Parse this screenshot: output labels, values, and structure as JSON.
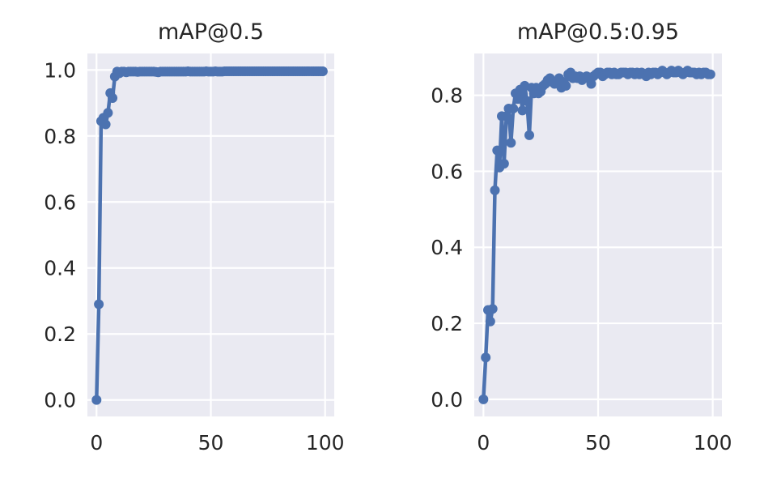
{
  "chart_data": [
    {
      "type": "line",
      "title": "mAP@0.5",
      "xlabel": "",
      "ylabel": "",
      "xlim": [
        -4,
        104
      ],
      "ylim": [
        -0.05,
        1.05
      ],
      "xticks": [
        0,
        50,
        100
      ],
      "xtick_labels": [
        "0",
        "50",
        "100"
      ],
      "yticks": [
        0.0,
        0.2,
        0.4,
        0.6,
        0.8,
        1.0
      ],
      "ytick_labels": [
        "0.0",
        "0.2",
        "0.4",
        "0.6",
        "0.8",
        "1.0"
      ],
      "grid": true,
      "markers": true,
      "color": "#4c72b0",
      "x": [
        0,
        1,
        2,
        3,
        4,
        5,
        6,
        7,
        8,
        9,
        10,
        11,
        12,
        13,
        14,
        15,
        16,
        17,
        18,
        19,
        20,
        21,
        22,
        23,
        24,
        25,
        26,
        27,
        28,
        29,
        30,
        31,
        32,
        33,
        34,
        35,
        36,
        37,
        38,
        39,
        40,
        41,
        42,
        43,
        44,
        45,
        46,
        47,
        48,
        49,
        50,
        51,
        52,
        53,
        54,
        55,
        56,
        57,
        58,
        59,
        60,
        61,
        62,
        63,
        64,
        65,
        66,
        67,
        68,
        69,
        70,
        71,
        72,
        73,
        74,
        75,
        76,
        77,
        78,
        79,
        80,
        81,
        82,
        83,
        84,
        85,
        86,
        87,
        88,
        89,
        90,
        91,
        92,
        93,
        94,
        95,
        96,
        97,
        98,
        99
      ],
      "y": [
        0.0,
        0.29,
        0.845,
        0.855,
        0.835,
        0.87,
        0.93,
        0.915,
        0.98,
        0.995,
        0.99,
        0.995,
        0.995,
        0.993,
        0.995,
        0.995,
        0.995,
        0.995,
        0.994,
        0.995,
        0.995,
        0.995,
        0.995,
        0.995,
        0.995,
        0.995,
        0.994,
        0.993,
        0.995,
        0.995,
        0.995,
        0.995,
        0.995,
        0.995,
        0.995,
        0.995,
        0.995,
        0.995,
        0.995,
        0.995,
        0.996,
        0.995,
        0.995,
        0.995,
        0.995,
        0.995,
        0.995,
        0.995,
        0.996,
        0.995,
        0.995,
        0.995,
        0.996,
        0.995,
        0.995,
        0.995,
        0.996,
        0.996,
        0.996,
        0.996,
        0.996,
        0.996,
        0.996,
        0.996,
        0.996,
        0.996,
        0.996,
        0.996,
        0.996,
        0.996,
        0.996,
        0.996,
        0.996,
        0.996,
        0.996,
        0.996,
        0.996,
        0.996,
        0.996,
        0.996,
        0.996,
        0.996,
        0.996,
        0.996,
        0.996,
        0.996,
        0.996,
        0.996,
        0.996,
        0.996,
        0.996,
        0.996,
        0.996,
        0.996,
        0.996,
        0.996,
        0.996,
        0.996,
        0.996,
        0.996
      ]
    },
    {
      "type": "line",
      "title": "mAP@0.5:0.95",
      "xlabel": "",
      "ylabel": "",
      "xlim": [
        -4,
        104
      ],
      "ylim": [
        -0.045,
        0.91
      ],
      "xticks": [
        0,
        50,
        100
      ],
      "xtick_labels": [
        "0",
        "50",
        "100"
      ],
      "yticks": [
        0.0,
        0.2,
        0.4,
        0.6,
        0.8
      ],
      "ytick_labels": [
        "0.0",
        "0.2",
        "0.4",
        "0.6",
        "0.8"
      ],
      "grid": true,
      "markers": true,
      "color": "#4c72b0",
      "x": [
        0,
        1,
        2,
        3,
        4,
        5,
        6,
        7,
        8,
        9,
        10,
        11,
        12,
        13,
        14,
        15,
        16,
        17,
        18,
        19,
        20,
        21,
        22,
        23,
        24,
        25,
        26,
        27,
        28,
        29,
        30,
        31,
        32,
        33,
        34,
        35,
        36,
        37,
        38,
        39,
        40,
        41,
        42,
        43,
        44,
        45,
        46,
        47,
        48,
        49,
        50,
        51,
        52,
        53,
        54,
        55,
        56,
        57,
        58,
        59,
        60,
        61,
        62,
        63,
        64,
        65,
        66,
        67,
        68,
        69,
        70,
        71,
        72,
        73,
        74,
        75,
        76,
        77,
        78,
        79,
        80,
        81,
        82,
        83,
        84,
        85,
        86,
        87,
        88,
        89,
        90,
        91,
        92,
        93,
        94,
        95,
        96,
        97,
        98,
        99
      ],
      "y": [
        0.0,
        0.11,
        0.235,
        0.205,
        0.238,
        0.55,
        0.655,
        0.61,
        0.745,
        0.62,
        0.745,
        0.765,
        0.675,
        0.765,
        0.805,
        0.79,
        0.815,
        0.76,
        0.825,
        0.785,
        0.695,
        0.82,
        0.805,
        0.82,
        0.805,
        0.81,
        0.825,
        0.83,
        0.84,
        0.845,
        0.835,
        0.83,
        0.835,
        0.845,
        0.82,
        0.835,
        0.825,
        0.855,
        0.86,
        0.845,
        0.85,
        0.845,
        0.85,
        0.84,
        0.845,
        0.85,
        0.845,
        0.83,
        0.85,
        0.855,
        0.86,
        0.86,
        0.85,
        0.855,
        0.86,
        0.86,
        0.855,
        0.86,
        0.855,
        0.855,
        0.86,
        0.86,
        0.86,
        0.855,
        0.86,
        0.86,
        0.855,
        0.86,
        0.855,
        0.86,
        0.855,
        0.85,
        0.86,
        0.855,
        0.86,
        0.86,
        0.855,
        0.86,
        0.865,
        0.86,
        0.855,
        0.86,
        0.865,
        0.86,
        0.86,
        0.865,
        0.86,
        0.855,
        0.86,
        0.865,
        0.86,
        0.86,
        0.86,
        0.855,
        0.86,
        0.855,
        0.86,
        0.86,
        0.855,
        0.855
      ]
    }
  ]
}
